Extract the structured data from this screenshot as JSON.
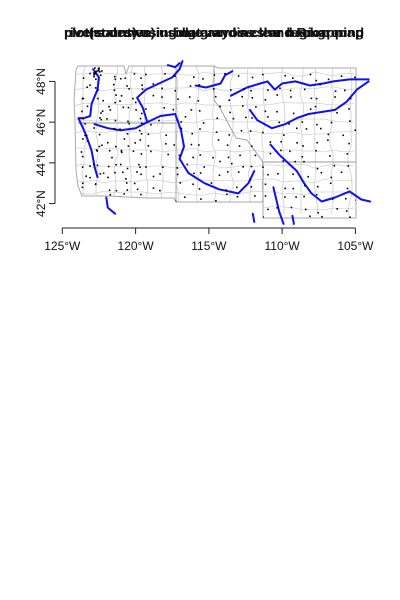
{
  "figure": {
    "title_layers": [
      "plot(states) using data and a clear background",
      "plot(counties) using gray lines and Rmapping",
      "rivers drawn in blue across the region map"
    ]
  },
  "chart_data": {
    "type": "map",
    "xlabel": "",
    "ylabel": "",
    "xlim": [
      -125.5,
      -103.8
    ],
    "ylim": [
      40.8,
      49.2
    ],
    "x_ticks": [
      {
        "value": -125,
        "label": "125°W"
      },
      {
        "value": -120,
        "label": "120°W"
      },
      {
        "value": -115,
        "label": "115°W"
      },
      {
        "value": -110,
        "label": "110°W"
      },
      {
        "value": -105,
        "label": "105°W"
      }
    ],
    "y_ticks": [
      {
        "value": 42,
        "label": "42°N"
      },
      {
        "value": 44,
        "label": "44°N"
      },
      {
        "value": 46,
        "label": "46°N"
      },
      {
        "value": 48,
        "label": "48°N"
      }
    ],
    "colors": {
      "county_lines": "#b8b8b8",
      "rivers": "#1010ee",
      "points": "#000000",
      "axis": "#222222"
    },
    "rivers": [
      {
        "name": "",
        "coords": [
          [
            -122.9,
            48.6
          ],
          [
            -122.5,
            48.2
          ],
          [
            -122.6,
            47.6
          ],
          [
            -123.0,
            46.9
          ],
          [
            -123.1,
            46.3
          ],
          [
            -123.5,
            46.2
          ],
          [
            -123.9,
            46.2
          ],
          [
            -123.4,
            45.4
          ],
          [
            -123.0,
            44.6
          ],
          [
            -122.8,
            43.8
          ],
          [
            -122.6,
            43.3
          ]
        ]
      },
      {
        "name": "",
        "coords": [
          [
            -122.8,
            45.9
          ],
          [
            -121.9,
            45.7
          ],
          [
            -121.0,
            45.6
          ],
          [
            -120.0,
            45.7
          ],
          [
            -119.2,
            46.0
          ]
        ]
      },
      {
        "name": "",
        "coords": [
          [
            -119.2,
            46.0
          ],
          [
            -119.5,
            46.7
          ],
          [
            -119.9,
            47.2
          ],
          [
            -119.3,
            47.6
          ],
          [
            -118.4,
            47.9
          ],
          [
            -117.5,
            48.2
          ],
          [
            -117.0,
            48.6
          ],
          [
            -116.8,
            49.0
          ]
        ]
      },
      {
        "name": "",
        "coords": [
          [
            -119.2,
            46.0
          ],
          [
            -118.3,
            46.3
          ],
          [
            -117.3,
            46.4
          ],
          [
            -116.9,
            45.6
          ],
          [
            -116.7,
            44.8
          ],
          [
            -117.0,
            44.2
          ],
          [
            -116.4,
            43.5
          ],
          [
            -115.3,
            43.0
          ],
          [
            -114.3,
            42.7
          ],
          [
            -113.0,
            42.5
          ],
          [
            -112.3,
            43.0
          ],
          [
            -111.9,
            43.6
          ]
        ]
      },
      {
        "name": "",
        "coords": [
          [
            -117.8,
            48.8
          ],
          [
            -117.3,
            48.7
          ],
          [
            -117.0,
            48.9
          ]
        ]
      },
      {
        "name": "",
        "coords": [
          [
            -115.9,
            47.8
          ],
          [
            -115.2,
            47.7
          ],
          [
            -114.2,
            47.9
          ],
          [
            -113.9,
            48.3
          ],
          [
            -113.4,
            48.5
          ]
        ]
      },
      {
        "name": "",
        "coords": [
          [
            -113.5,
            47.3
          ],
          [
            -112.4,
            47.7
          ],
          [
            -111.5,
            47.9
          ],
          [
            -111.0,
            48.0
          ],
          [
            -110.5,
            47.6
          ],
          [
            -110.0,
            47.9
          ],
          [
            -109.1,
            48.0
          ],
          [
            -108.1,
            47.8
          ],
          [
            -107.2,
            47.9
          ],
          [
            -106.5,
            48.0
          ],
          [
            -105.4,
            48.1
          ],
          [
            -104.1,
            48.1
          ]
        ]
      },
      {
        "name": "",
        "coords": [
          [
            -112.2,
            46.6
          ],
          [
            -111.7,
            46.1
          ],
          [
            -110.7,
            45.7
          ],
          [
            -109.8,
            45.9
          ],
          [
            -109.0,
            46.2
          ],
          [
            -108.2,
            46.4
          ],
          [
            -107.3,
            46.5
          ],
          [
            -106.4,
            46.6
          ],
          [
            -105.6,
            47.0
          ],
          [
            -104.9,
            47.6
          ],
          [
            -104.1,
            48.0
          ]
        ]
      },
      {
        "name": "",
        "coords": [
          [
            -110.8,
            44.9
          ],
          [
            -110.2,
            44.4
          ],
          [
            -109.6,
            44.0
          ],
          [
            -109.0,
            43.6
          ],
          [
            -108.5,
            43.0
          ],
          [
            -108.0,
            42.5
          ],
          [
            -107.3,
            42.1
          ],
          [
            -106.4,
            42.3
          ],
          [
            -105.4,
            42.6
          ],
          [
            -104.6,
            42.2
          ],
          [
            -104.0,
            42.1
          ]
        ]
      },
      {
        "name": "",
        "coords": [
          [
            -110.6,
            42.8
          ],
          [
            -110.4,
            42.2
          ],
          [
            -110.2,
            41.6
          ],
          [
            -109.9,
            41.0
          ]
        ]
      },
      {
        "name": "",
        "coords": [
          [
            -109.3,
            41.4
          ],
          [
            -109.2,
            41.0
          ]
        ]
      },
      {
        "name": "",
        "coords": [
          [
            -122.0,
            42.3
          ],
          [
            -121.9,
            41.8
          ],
          [
            -121.4,
            41.5
          ]
        ]
      },
      {
        "name": "",
        "coords": [
          [
            -112.0,
            41.5
          ],
          [
            -111.9,
            41.1
          ]
        ]
      }
    ]
  }
}
